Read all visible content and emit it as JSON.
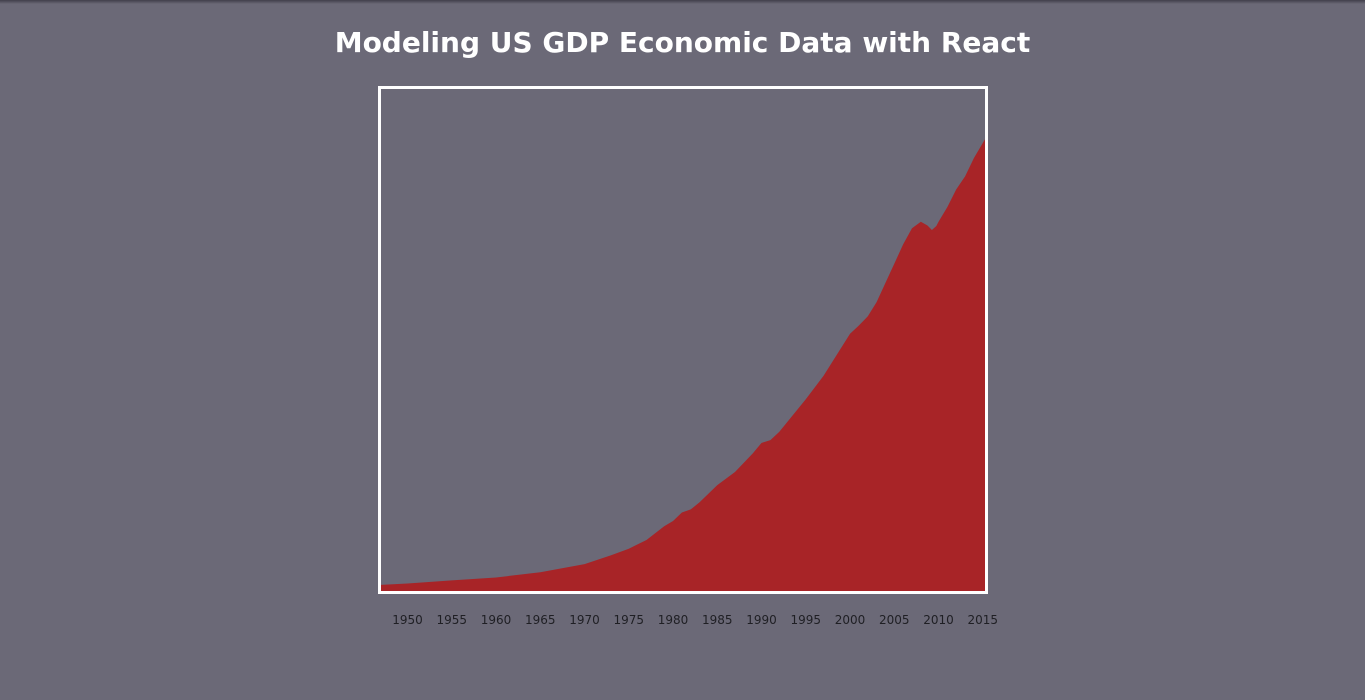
{
  "page": {
    "title": "Modeling US GDP Economic Data with React"
  },
  "colors": {
    "background": "#6b6977",
    "area_fill": "#a82427",
    "frame": "#ffffff",
    "title": "#ffffff",
    "tick_text": "#1f1f24"
  },
  "chart_data": {
    "type": "area",
    "title": "Modeling US GDP Economic Data with React",
    "xlabel": "",
    "ylabel": "",
    "grid": false,
    "legend": "none",
    "xlim": [
      1947,
      2015.25
    ],
    "ylim": [
      0,
      20000
    ],
    "xticks": [
      1950,
      1955,
      1960,
      1965,
      1970,
      1975,
      1980,
      1985,
      1990,
      1995,
      2000,
      2005,
      2010,
      2015
    ],
    "xtick_labels": [
      "1950",
      "1955",
      "1960",
      "1965",
      "1970",
      "1975",
      "1980",
      "1985",
      "1990",
      "1995",
      "2000",
      "2005",
      "2010",
      "2015"
    ],
    "series": [
      {
        "x": [
          1947,
          1950,
          1955,
          1960,
          1965,
          1970,
          1973,
          1975,
          1977,
          1979,
          1980,
          1981,
          1982,
          1983,
          1985,
          1987,
          1989,
          1990,
          1991,
          1992,
          1995,
          1997,
          2000,
          2001,
          2002,
          2003,
          2005,
          2006,
          2007,
          2008,
          2008.75,
          2009.25,
          2009.75,
          2010,
          2011,
          2012,
          2013,
          2014,
          2015,
          2015.25
        ],
        "values": [
          243,
          300,
          425,
          540,
          745,
          1073,
          1425,
          1685,
          2030,
          2580,
          2790,
          3130,
          3250,
          3535,
          4220,
          4740,
          5480,
          5900,
          6010,
          6340,
          7640,
          8570,
          10250,
          10580,
          10940,
          11510,
          13040,
          13810,
          14450,
          14710,
          14560,
          14380,
          14540,
          14710,
          15300,
          16000,
          16520,
          17250,
          17850,
          18000
        ]
      }
    ]
  }
}
